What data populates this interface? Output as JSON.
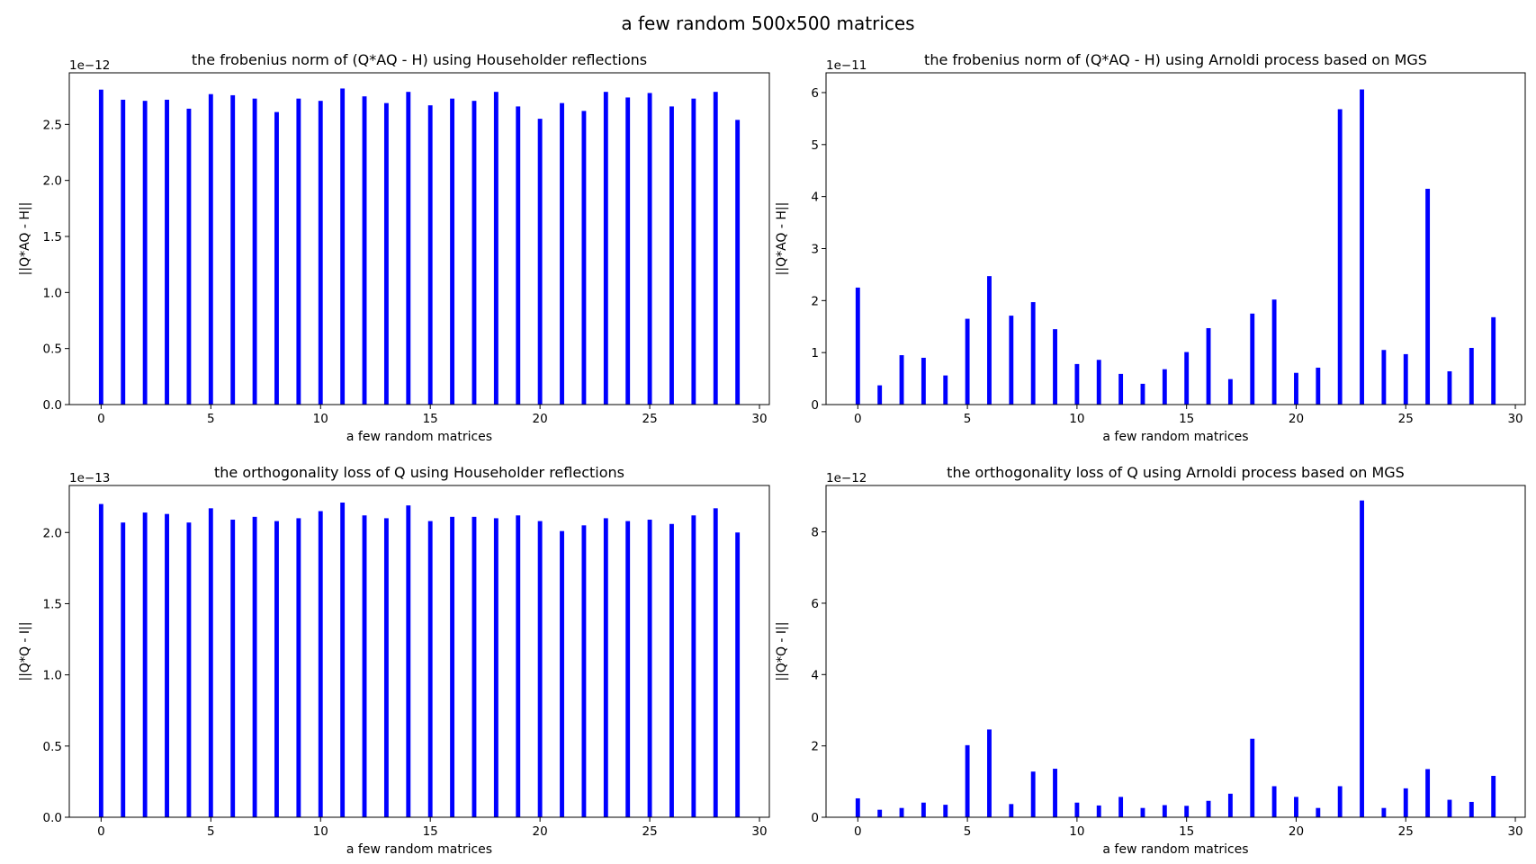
{
  "figure": {
    "title": "a few random 500x500 matrices",
    "bar_color": "#0000ff"
  },
  "chart_data": [
    {
      "type": "bar",
      "title": "the frobenius norm of (Q*AQ - H) using Householder reflections",
      "xlabel": "a few random matrices",
      "ylabel": "||Q*AQ - H||",
      "offset_text": "1e−12",
      "xlim": [
        -1.45,
        30.45
      ],
      "xticks": [
        0,
        5,
        10,
        15,
        20,
        25,
        30
      ],
      "ylim": [
        0,
        2.96
      ],
      "yticks": [
        0.0,
        0.5,
        1.0,
        1.5,
        2.0,
        2.5
      ],
      "tick_labels": [
        "0.0",
        "0.5",
        "1.0",
        "1.5",
        "2.0",
        "2.5"
      ],
      "x": [
        0,
        1,
        2,
        3,
        4,
        5,
        6,
        7,
        8,
        9,
        10,
        11,
        12,
        13,
        14,
        15,
        16,
        17,
        18,
        19,
        20,
        21,
        22,
        23,
        24,
        25,
        26,
        27,
        28,
        29
      ],
      "values": [
        2.81,
        2.72,
        2.71,
        2.72,
        2.64,
        2.77,
        2.76,
        2.73,
        2.61,
        2.73,
        2.71,
        2.82,
        2.75,
        2.69,
        2.79,
        2.67,
        2.73,
        2.71,
        2.79,
        2.66,
        2.55,
        2.69,
        2.62,
        2.79,
        2.74,
        2.78,
        2.66,
        2.73,
        2.79,
        2.54
      ]
    },
    {
      "type": "bar",
      "title": "the frobenius norm of (Q*AQ - H) using Arnoldi process based on MGS",
      "xlabel": "a few random matrices",
      "ylabel": "||Q*AQ - H||",
      "offset_text": "1e−11",
      "xlim": [
        -1.45,
        30.45
      ],
      "xticks": [
        0,
        5,
        10,
        15,
        20,
        25,
        30
      ],
      "ylim": [
        0,
        6.38
      ],
      "yticks": [
        0,
        1,
        2,
        3,
        4,
        5,
        6
      ],
      "tick_labels": [
        "0",
        "1",
        "2",
        "3",
        "4",
        "5",
        "6"
      ],
      "x": [
        0,
        1,
        2,
        3,
        4,
        5,
        6,
        7,
        8,
        9,
        10,
        11,
        12,
        13,
        14,
        15,
        16,
        17,
        18,
        19,
        20,
        21,
        22,
        23,
        24,
        25,
        26,
        27,
        28,
        29
      ],
      "values": [
        2.25,
        0.37,
        0.95,
        0.9,
        0.56,
        1.65,
        2.47,
        1.71,
        1.97,
        1.45,
        0.78,
        0.86,
        0.59,
        0.4,
        0.68,
        1.01,
        1.47,
        0.49,
        1.75,
        2.02,
        0.61,
        0.71,
        5.68,
        6.06,
        1.05,
        0.97,
        4.15,
        0.64,
        1.09,
        1.68
      ]
    },
    {
      "type": "bar",
      "title": "the orthogonality loss of Q using Householder reflections",
      "xlabel": "a few random matrices",
      "ylabel": "||Q*Q - I||",
      "offset_text": "1e−13",
      "xlim": [
        -1.45,
        30.45
      ],
      "xticks": [
        0,
        5,
        10,
        15,
        20,
        25,
        30
      ],
      "ylim": [
        0,
        2.33
      ],
      "yticks": [
        0.0,
        0.5,
        1.0,
        1.5,
        2.0
      ],
      "tick_labels": [
        "0.0",
        "0.5",
        "1.0",
        "1.5",
        "2.0"
      ],
      "x": [
        0,
        1,
        2,
        3,
        4,
        5,
        6,
        7,
        8,
        9,
        10,
        11,
        12,
        13,
        14,
        15,
        16,
        17,
        18,
        19,
        20,
        21,
        22,
        23,
        24,
        25,
        26,
        27,
        28,
        29
      ],
      "values": [
        2.2,
        2.07,
        2.14,
        2.13,
        2.07,
        2.17,
        2.09,
        2.11,
        2.08,
        2.1,
        2.15,
        2.21,
        2.12,
        2.1,
        2.19,
        2.08,
        2.11,
        2.11,
        2.1,
        2.12,
        2.08,
        2.01,
        2.05,
        2.1,
        2.08,
        2.09,
        2.06,
        2.12,
        2.17,
        2.0
      ]
    },
    {
      "type": "bar",
      "title": "the orthogonality loss of Q using Arnoldi process based on MGS",
      "xlabel": "a few random matrices",
      "ylabel": "||Q*Q - I||",
      "offset_text": "1e−12",
      "xlim": [
        -1.45,
        30.45
      ],
      "xticks": [
        0,
        5,
        10,
        15,
        20,
        25,
        30
      ],
      "ylim": [
        0,
        9.3
      ],
      "yticks": [
        0,
        2,
        4,
        6,
        8
      ],
      "tick_labels": [
        "0",
        "2",
        "4",
        "6",
        "8"
      ],
      "x": [
        0,
        1,
        2,
        3,
        4,
        5,
        6,
        7,
        8,
        9,
        10,
        11,
        12,
        13,
        14,
        15,
        16,
        17,
        18,
        19,
        20,
        21,
        22,
        23,
        24,
        25,
        26,
        27,
        28,
        29
      ],
      "values": [
        0.53,
        0.21,
        0.26,
        0.41,
        0.35,
        2.02,
        2.46,
        0.37,
        1.28,
        1.36,
        0.41,
        0.33,
        0.57,
        0.26,
        0.34,
        0.32,
        0.46,
        0.66,
        2.2,
        0.87,
        0.57,
        0.26,
        0.87,
        8.88,
        0.26,
        0.81,
        1.35,
        0.49,
        0.43,
        1.16
      ]
    }
  ]
}
